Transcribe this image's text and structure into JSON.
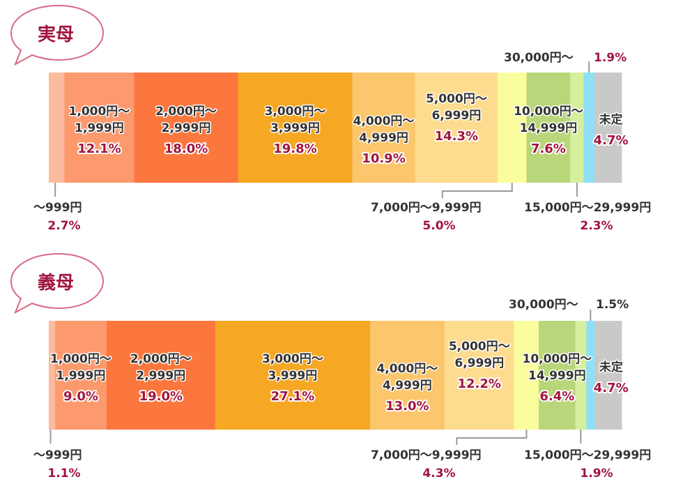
{
  "chart_data": [
    {
      "type": "bar",
      "title": "実母",
      "categories": [
        "〜999円",
        "1,000円〜1,999円",
        "2,000円〜2,999円",
        "3,000円〜3,999円",
        "4,000円〜4,999円",
        "5,000円〜6,999円",
        "7,000円〜9,999円",
        "10,000円〜14,999円",
        "15,000円〜29,999円",
        "30,000円〜",
        "未定"
      ],
      "values": [
        2.7,
        12.1,
        18.0,
        19.8,
        10.9,
        14.3,
        5.0,
        7.6,
        2.3,
        1.9,
        4.7
      ],
      "value_labels": [
        "2.7%",
        "12.1%",
        "18.0%",
        "19.8%",
        "10.9%",
        "14.3%",
        "5.0%",
        "7.6%",
        "2.3%",
        "1.9%",
        "4.7%"
      ],
      "outside_labels": [
        "30,000円〜",
        "7,000円〜9,999円",
        "15,000円〜29,999円",
        "〜999円"
      ]
    },
    {
      "type": "bar",
      "title": "義母",
      "categories": [
        "〜999円",
        "1,000円〜1,999円",
        "2,000円〜2,999円",
        "3,000円〜3,999円",
        "4,000円〜4,999円",
        "5,000円〜6,999円",
        "7,000円〜9,999円",
        "10,000円〜14,999円",
        "15,000円〜29,999円",
        "30,000円〜",
        "未定"
      ],
      "values": [
        1.1,
        9.0,
        19.0,
        27.1,
        13.0,
        12.2,
        4.3,
        6.4,
        1.9,
        1.5,
        4.7
      ],
      "value_labels": [
        "1.1%",
        "9.0%",
        "19.0%",
        "27.1%",
        "13.0%",
        "12.2%",
        "4.3%",
        "6.4%",
        "1.9%",
        "1.5%",
        "4.7%"
      ],
      "outside_labels": [
        "30,000円〜",
        "7,000円〜9,999円",
        "15,000円〜29,999円",
        "〜999円"
      ]
    }
  ],
  "inside_labels": [
    [
      null,
      [
        "1,000円〜",
        "1,999円"
      ],
      [
        "2,000円〜",
        "2,999円"
      ],
      [
        "3,000円〜",
        "3,999円"
      ],
      [
        "4,000円〜",
        "4,999円"
      ],
      [
        "5,000円〜",
        "6,999円"
      ],
      null,
      [
        "10,000円〜",
        "14,999円"
      ],
      null,
      null,
      [
        "未定"
      ]
    ],
    [
      null,
      [
        "1,000円〜",
        "1,999円"
      ],
      [
        "2,000円〜",
        "2,999円"
      ],
      [
        "3,000円〜",
        "3,999円"
      ],
      [
        "4,000円〜",
        "4,999円"
      ],
      [
        "5,000円〜",
        "6,999円"
      ],
      null,
      [
        "10,000円〜",
        "14,999円"
      ],
      null,
      null,
      [
        "未定"
      ]
    ]
  ],
  "colors": {
    "segments": [
      "#fcbb9c",
      "#fc9a6e",
      "#fb773d",
      "#f6a723",
      "#fcc66c",
      "#fddc90",
      "#fafd9e",
      "#b9d67a",
      "#d6ef9d",
      "#8fe0f6",
      "#c9c9c9"
    ],
    "accent": "#a0153e",
    "text": "#333333",
    "leader": "#999999"
  }
}
